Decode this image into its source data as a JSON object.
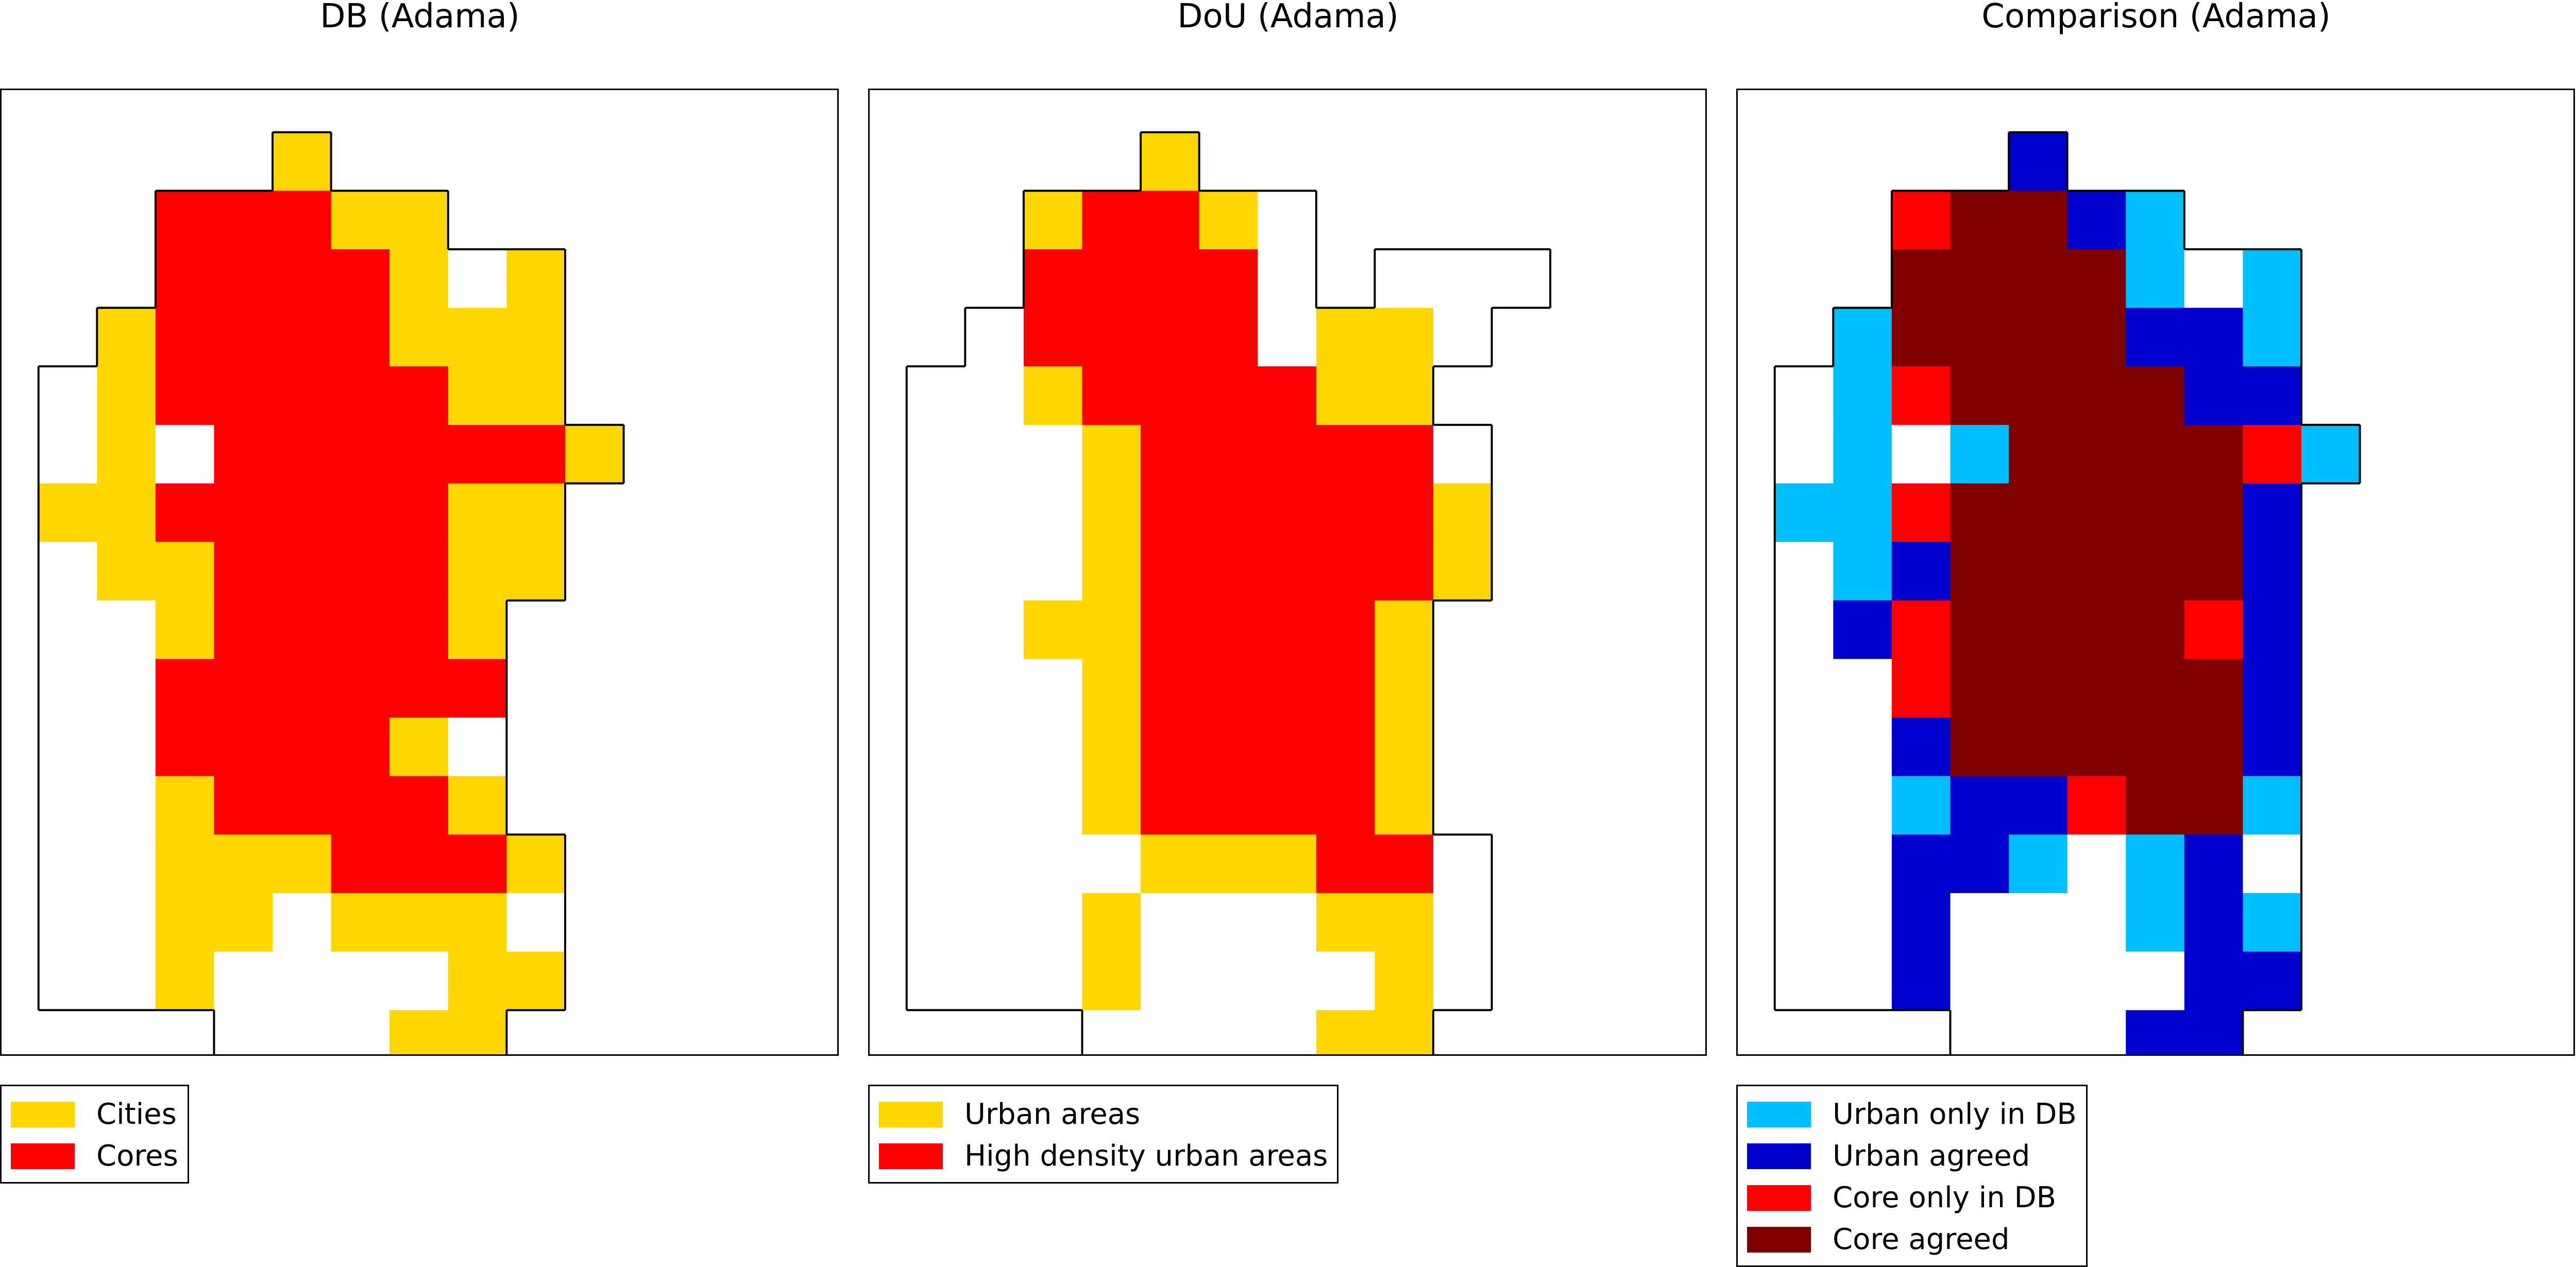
{
  "map_data": {
    "city": "Adama",
    "colors": {
      "cities": "#ffd700",
      "cores": "#ff0000",
      "urban_only_in_db": "#00bfff",
      "urban_agreed": "#0000cd",
      "core_only_in_db": "#ff0000",
      "core_agreed": "#800000",
      "outside": "#ffffff"
    },
    "grid_layout": {
      "DB": [
        "....C.......",
        "..RRRCC.....",
        "..RRRRCOC...",
        ".CRRRRCCC...",
        "OCRRRRRCC...",
        "OCORRRRRRC..",
        "CCRRRRRCC...",
        "OCCRRRRCC...",
        "OOCRRRRC....",
        "OORRRRRR....",
        "OORRRRCO....",
        "OOCRRRRC....",
        "OOCCCRRRC...",
        "OOCCOCCCO...",
        "OOCOOOOCC...",
        "...OOOCC...."
      ],
      "DoU": [
        "....C.......",
        "..CRRCO.....",
        "..RRRRO.OOO.",
        ".ORRRROCCO..",
        "OOCRRRRCC...",
        "OOOCRRRRRO..",
        "OOOCRRRRRC..",
        "OOOCRRRRRC..",
        "OOCCRRRRC...",
        "OOOCRRRRC...",
        "OOOCRRRRC...",
        "OOOCRRRRC...",
        "OOOOCCCRRO..",
        "OOOCOOOCCO..",
        "OOOCOOOOCO..",
        "...OOOOCC..."
      ],
      "Comparison": [
        "....U.......",
        "..KMMUL.....",
        "..MMMMLOL...",
        ".LMMMMUUL...",
        "OLKMMMMUU...",
        "OLOLMMMMKL..",
        "LLKMMMMMU...",
        "OLUMMMMMU...",
        "OUKMMMMKU...",
        "OOKMMMMMU...",
        "OOUMMMMMU...",
        "OOLUUKMML...",
        "OOUULOLUO...",
        "OOUOOOLUL...",
        "OOUOOOOUU...",
        "...OOOUU...."
      ]
    }
  },
  "panels": [
    {
      "title": "DB (Adama)",
      "legend": [
        {
          "label": "Cities",
          "color": "#ffd700"
        },
        {
          "label": "Cores",
          "color": "#ff0000"
        }
      ]
    },
    {
      "title": "DoU (Adama)",
      "legend": [
        {
          "label": "Urban areas",
          "color": "#ffd700"
        },
        {
          "label": "High density urban areas",
          "color": "#ff0000"
        }
      ]
    },
    {
      "title": "Comparison (Adama)",
      "legend": [
        {
          "label": "Urban only in DB",
          "color": "#00bfff"
        },
        {
          "label": "Urban agreed",
          "color": "#0000cd"
        },
        {
          "label": "Core only in DB",
          "color": "#ff0000"
        },
        {
          "label": "Core agreed",
          "color": "#800000"
        }
      ]
    }
  ]
}
